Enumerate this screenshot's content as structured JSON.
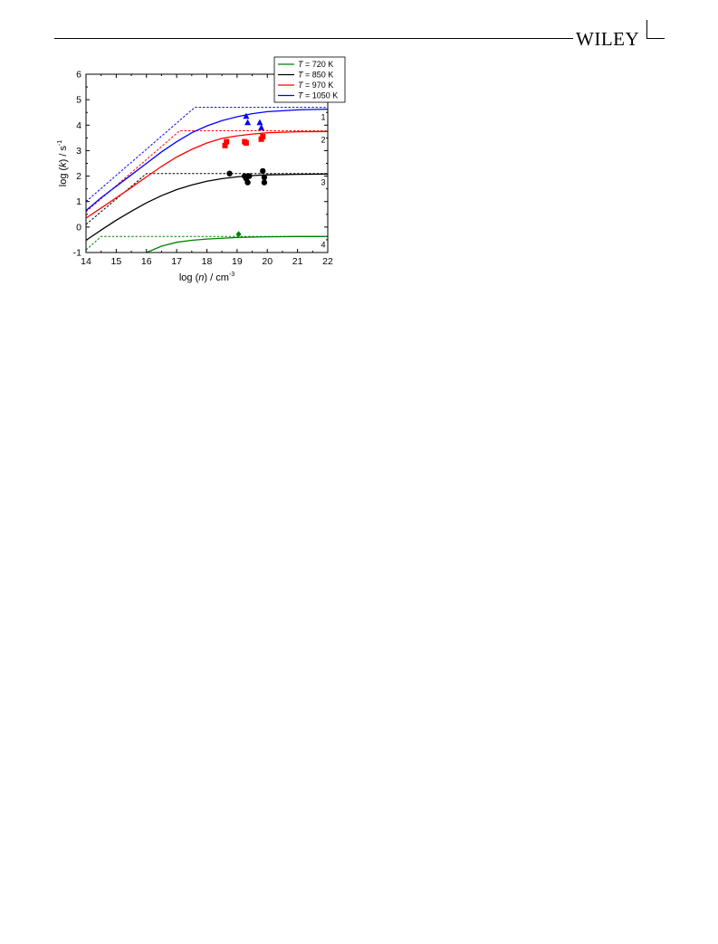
{
  "header": {
    "publisher": "WILEY"
  },
  "chart_data": {
    "type": "line",
    "xlabel": "log (n) / cm-3",
    "ylabel": "log (k) / s-1",
    "xlim": [
      14,
      22
    ],
    "ylim": [
      -1,
      6
    ],
    "xticks": [
      "14",
      "15",
      "16",
      "17",
      "18",
      "19",
      "20",
      "21",
      "22"
    ],
    "yticks": [
      "-1",
      "0",
      "1",
      "2",
      "3",
      "4",
      "5",
      "6"
    ],
    "legend_position": "top-right",
    "colors": {
      "720": "#008000",
      "850": "#000000",
      "970": "#ff0000",
      "1050": "#0000ff"
    },
    "series": [
      {
        "name": "T = 720 K",
        "curve_label": "4",
        "color": "#008000",
        "fit": {
          "x": [
            16,
            16.5,
            17,
            17.5,
            18,
            19,
            20,
            21,
            22
          ],
          "y": [
            -1.0,
            -0.75,
            -0.6,
            -0.52,
            -0.47,
            -0.41,
            -0.38,
            -0.37,
            -0.37
          ]
        },
        "limit": {
          "x": [
            14.0,
            14.5,
            22.0
          ],
          "y": [
            -0.9,
            -0.37,
            -0.37
          ]
        },
        "markers": {
          "shape": "diamond",
          "x": [
            19.05
          ],
          "y": [
            -0.28
          ]
        }
      },
      {
        "name": "T = 850 K",
        "curve_label": "3",
        "color": "#000000",
        "fit": {
          "x": [
            14,
            14.5,
            15,
            15.5,
            16,
            16.5,
            17,
            17.5,
            18,
            18.5,
            19,
            19.5,
            20,
            21,
            22
          ],
          "y": [
            -0.52,
            -0.12,
            0.27,
            0.62,
            0.95,
            1.23,
            1.47,
            1.65,
            1.8,
            1.9,
            1.97,
            2.02,
            2.05,
            2.07,
            2.08
          ]
        },
        "limit": {
          "x": [
            14.0,
            16.0,
            22.0
          ],
          "y": [
            0.1,
            2.1,
            2.1
          ]
        },
        "markers": {
          "shape": "circle",
          "x": [
            18.75,
            19.25,
            19.3,
            19.35,
            19.4,
            19.85,
            19.9,
            19.9
          ],
          "y": [
            2.1,
            2.0,
            1.9,
            1.75,
            2.0,
            2.2,
            1.95,
            1.75
          ]
        }
      },
      {
        "name": "T = 970 K",
        "curve_label": "2",
        "color": "#ff0000",
        "fit": {
          "x": [
            14,
            14.5,
            15,
            15.5,
            16,
            16.5,
            17,
            17.5,
            18,
            18.5,
            19,
            19.5,
            20,
            21,
            22
          ],
          "y": [
            0.35,
            0.75,
            1.15,
            1.55,
            1.97,
            2.38,
            2.75,
            3.05,
            3.3,
            3.48,
            3.58,
            3.65,
            3.7,
            3.74,
            3.75
          ]
        },
        "limit": {
          "x": [
            14.0,
            17.1,
            22.0
          ],
          "y": [
            0.6,
            3.78,
            3.78
          ]
        },
        "markers": {
          "shape": "square",
          "x": [
            18.6,
            18.65,
            19.25,
            19.3,
            19.8,
            19.85
          ],
          "y": [
            3.2,
            3.35,
            3.35,
            3.3,
            3.45,
            3.55
          ]
        }
      },
      {
        "name": "T = 1050 K",
        "curve_label": "1",
        "color": "#0000ff",
        "fit": {
          "x": [
            14,
            14.5,
            15,
            15.5,
            16,
            16.5,
            17,
            17.5,
            18,
            18.5,
            19,
            19.5,
            20,
            21,
            22
          ],
          "y": [
            0.65,
            1.15,
            1.6,
            2.05,
            2.5,
            2.95,
            3.35,
            3.7,
            3.97,
            4.18,
            4.33,
            4.45,
            4.53,
            4.6,
            4.63
          ]
        },
        "limit": {
          "x": [
            14.0,
            17.6,
            22.0
          ],
          "y": [
            1.0,
            4.7,
            4.7
          ]
        },
        "markers": {
          "shape": "triangle",
          "x": [
            19.3,
            19.35,
            19.75,
            19.8
          ],
          "y": [
            4.35,
            4.1,
            4.1,
            3.9
          ]
        }
      }
    ]
  }
}
